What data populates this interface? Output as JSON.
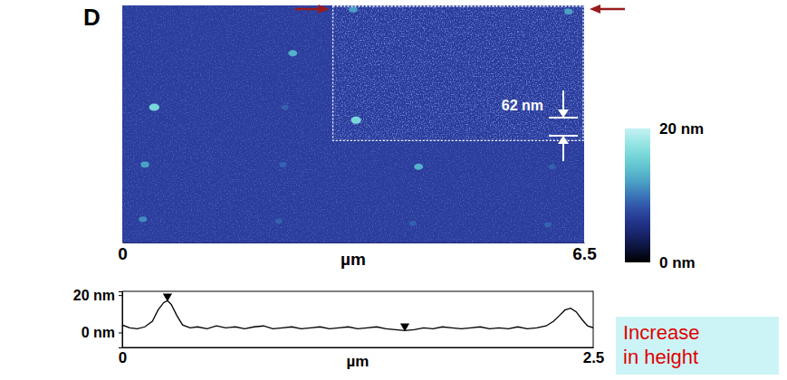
{
  "panel_label": "D",
  "callout": {
    "lines": [
      "Increase",
      "in height"
    ]
  },
  "chart_data": [
    {
      "type": "scatter",
      "x": [
        2.4,
        0.45,
        2.29,
        3.25,
        6.28,
        3.29,
        0.32,
        2.26,
        4.17,
        6.05,
        0.29,
        2.2,
        4.09,
        5.99
      ],
      "values": [
        2.77,
        1.98,
        1.98,
        3.41,
        3.38,
        1.79,
        1.14,
        1.14,
        1.11,
        1.11,
        0.34,
        0.31,
        0.28,
        0.26
      ],
      "heights": [
        13,
        16,
        9,
        12,
        12,
        16,
        12,
        9,
        13,
        9,
        11,
        9,
        9,
        9
      ],
      "xlim": [
        0,
        6.5
      ],
      "ylim": [
        0,
        3.47
      ],
      "xticks": [
        0,
        6.5
      ],
      "xlabel": "µm",
      "tick_labels": "x",
      "annotations": [
        "62 nm"
      ],
      "colorbar": {
        "range": [
          0,
          20
        ],
        "ticks": [
          {
            "value": 0,
            "label": "0 nm"
          },
          {
            "value": 20,
            "label": "20 nm"
          }
        ]
      }
    },
    {
      "type": "line",
      "x": [
        0,
        0.04,
        0.08,
        0.12,
        0.16,
        0.19,
        0.22,
        0.24,
        0.26,
        0.29,
        0.32,
        0.36,
        0.4,
        0.45,
        0.5,
        0.55,
        0.6,
        0.65,
        0.7,
        0.75,
        0.8,
        0.85,
        0.9,
        0.95,
        1.0,
        1.05,
        1.1,
        1.15,
        1.2,
        1.25,
        1.3,
        1.35,
        1.4,
        1.45,
        1.5,
        1.55,
        1.6,
        1.65,
        1.7,
        1.75,
        1.8,
        1.85,
        1.9,
        1.95,
        2.0,
        2.05,
        2.1,
        2.15,
        2.2,
        2.25,
        2.29,
        2.32,
        2.35,
        2.38,
        2.41,
        2.44,
        2.47,
        2.5
      ],
      "series": [
        {
          "color": "#000000",
          "values": [
            4,
            2.5,
            2,
            3,
            6,
            12,
            16,
            17,
            15,
            9,
            4,
            2.5,
            3,
            2,
            3.5,
            2.5,
            3,
            2,
            3,
            3.5,
            2,
            2.5,
            3,
            2,
            2.5,
            3,
            2,
            2.5,
            3,
            2,
            2.5,
            3,
            2,
            1.5,
            1,
            1.5,
            2.5,
            2,
            3,
            2.5,
            2,
            2.5,
            3,
            2,
            2.5,
            2,
            3,
            2,
            2.5,
            3.5,
            6,
            9,
            12,
            13,
            11,
            7,
            3.5,
            2.5
          ]
        }
      ],
      "markers": {
        "x": [
          0.24,
          1.5
        ],
        "values": [
          17,
          1
        ],
        "marker": "triangle-down",
        "color": "#000000"
      },
      "xlim": [
        0,
        2.5
      ],
      "ylim": [
        -8,
        22
      ],
      "xticks": [
        0,
        2.5
      ],
      "xlabel": "µm",
      "yticks": [
        {
          "value": 0,
          "label": "0 nm"
        },
        {
          "value": 20,
          "label": "20 nm"
        }
      ]
    }
  ]
}
